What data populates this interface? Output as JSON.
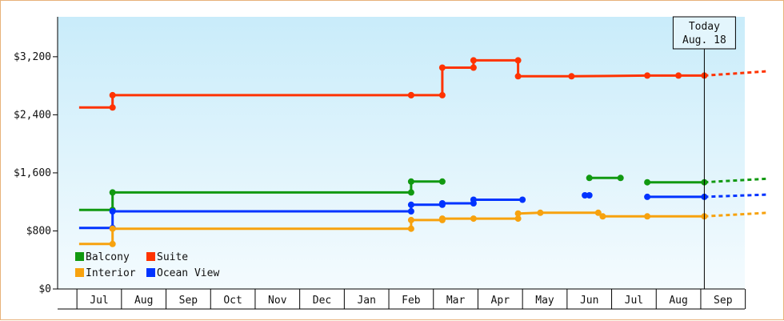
{
  "chart_data": {
    "type": "line",
    "title": "",
    "xlabel": "",
    "ylabel": "",
    "y_tick_labels": [
      "$0",
      "$800",
      "$1,600",
      "$2,400",
      "$3,200"
    ],
    "y_ticks": [
      0,
      800,
      1600,
      2400,
      3200
    ],
    "ylim": [
      0,
      3750
    ],
    "x_tick_labels": [
      "Jul",
      "Aug",
      "Sep",
      "Oct",
      "Nov",
      "Dec",
      "Jan",
      "Feb",
      "Mar",
      "Apr",
      "May",
      "Jun",
      "Jul",
      "Aug",
      "Sep"
    ],
    "xlim": [
      -0.45,
      15.0
    ],
    "annotation": {
      "line1": "Today",
      "line2": "Aug. 18",
      "x": 13.58
    },
    "legend": {
      "placement": "bottom-left",
      "entries": [
        "Balcony",
        "Suite",
        "Interior",
        "Ocean View"
      ]
    },
    "grid": false,
    "series": [
      {
        "name": "Suite",
        "color": "#ff3300",
        "segments": [
          [
            [
              -0.45,
              2500
            ],
            [
              0.3,
              2500
            ],
            [
              0.3,
              2670
            ],
            [
              7.0,
              2670
            ],
            [
              7.0,
              2670
            ],
            [
              7.7,
              2670
            ],
            [
              7.7,
              3050
            ],
            [
              8.4,
              3050
            ],
            [
              8.4,
              3150
            ],
            [
              9.4,
              3150
            ],
            [
              9.4,
              2930
            ],
            [
              10.6,
              2930
            ],
            [
              12.3,
              2940
            ],
            [
              13.0,
              2940
            ],
            [
              13.58,
              2940
            ]
          ]
        ],
        "forecast": [
          [
            13.58,
            2940
          ],
          [
            15.0,
            3000
          ]
        ]
      },
      {
        "name": "Balcony",
        "color": "#119911",
        "segments": [
          [
            [
              -0.45,
              1090
            ],
            [
              0.3,
              1090
            ],
            [
              0.3,
              1330
            ],
            [
              7.0,
              1330
            ],
            [
              7.0,
              1480
            ],
            [
              7.7,
              1480
            ]
          ],
          [
            [
              11.0,
              1530
            ],
            [
              11.7,
              1530
            ]
          ],
          [
            [
              12.3,
              1470
            ],
            [
              13.58,
              1470
            ]
          ]
        ],
        "forecast": [
          [
            13.58,
            1470
          ],
          [
            15.0,
            1520
          ]
        ]
      },
      {
        "name": "Ocean View",
        "color": "#0033ff",
        "segments": [
          [
            [
              -0.45,
              840
            ],
            [
              0.3,
              840
            ],
            [
              0.3,
              1070
            ],
            [
              7.0,
              1070
            ],
            [
              7.0,
              1160
            ],
            [
              7.7,
              1160
            ],
            [
              7.7,
              1180
            ],
            [
              8.4,
              1180
            ],
            [
              8.4,
              1230
            ],
            [
              9.5,
              1230
            ]
          ],
          [
            [
              10.9,
              1290
            ],
            [
              11.0,
              1290
            ]
          ],
          [
            [
              12.3,
              1270
            ],
            [
              13.58,
              1270
            ]
          ]
        ],
        "forecast": [
          [
            13.58,
            1270
          ],
          [
            15.0,
            1300
          ]
        ]
      },
      {
        "name": "Interior",
        "color": "#f7a20e",
        "segments": [
          [
            [
              -0.45,
              620
            ],
            [
              0.3,
              620
            ],
            [
              0.3,
              830
            ],
            [
              7.0,
              830
            ],
            [
              7.0,
              950
            ],
            [
              7.7,
              950
            ],
            [
              7.7,
              970
            ],
            [
              8.4,
              970
            ],
            [
              9.4,
              970
            ],
            [
              9.4,
              1040
            ],
            [
              9.9,
              1050
            ],
            [
              11.2,
              1050
            ],
            [
              11.3,
              1000
            ],
            [
              12.3,
              1000
            ],
            [
              13.58,
              1000
            ]
          ]
        ],
        "forecast": [
          [
            13.58,
            1000
          ],
          [
            15.0,
            1050
          ]
        ]
      }
    ]
  }
}
